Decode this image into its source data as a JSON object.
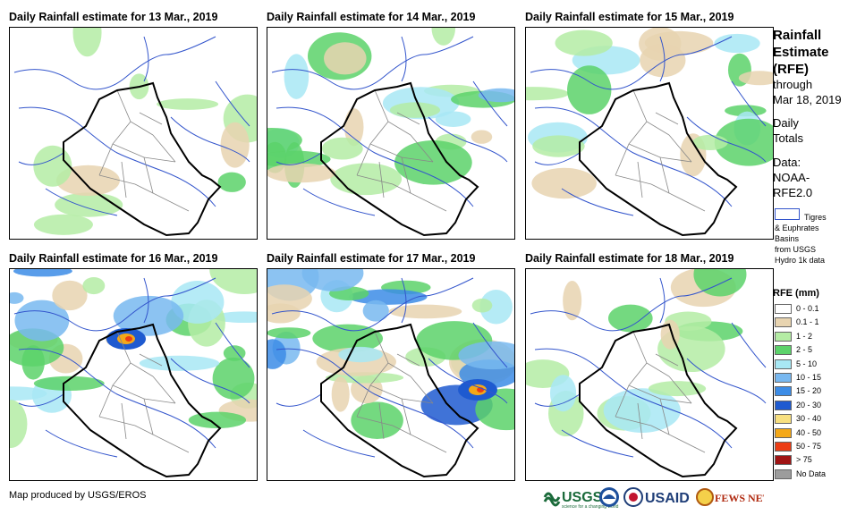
{
  "panels": [
    {
      "title": "Daily Rainfall estimate for 13 Mar., 2019",
      "intensity": 0
    },
    {
      "title": "Daily Rainfall estimate for 14 Mar., 2019",
      "intensity": 2
    },
    {
      "title": "Daily Rainfall estimate for 15 Mar., 2019",
      "intensity": 1
    },
    {
      "title": "Daily Rainfall estimate for 16 Mar., 2019",
      "intensity": 3
    },
    {
      "title": "Daily Rainfall estimate for 17 Mar., 2019",
      "intensity": 4
    },
    {
      "title": "Daily Rainfall estimate for 18 Mar., 2019",
      "intensity": 1
    }
  ],
  "legend": {
    "title": "Rainfall Estimate (RFE)",
    "through": "through",
    "date": "Mar 18, 2019",
    "daily": "Daily",
    "totals": "Totals",
    "data_label": "Data:",
    "data_source1": "NOAA-",
    "data_source2": "RFE2.0",
    "basin_line1": "Tigres",
    "basin_line2": "& Euphrates",
    "basin_line3": "Basins",
    "basin_line4": "from USGS",
    "basin_line5": "Hydro 1k data",
    "rfe_title": "RFE (mm)",
    "classes": [
      {
        "label": "0 - 0.1",
        "color": "#ffffff"
      },
      {
        "label": "0.1 - 1",
        "color": "#e8d4b0"
      },
      {
        "label": "1 - 2",
        "color": "#b4eca4"
      },
      {
        "label": "2 - 5",
        "color": "#5cd26a"
      },
      {
        "label": "5 - 10",
        "color": "#a8e8f4"
      },
      {
        "label": "10 - 15",
        "color": "#78b8f0"
      },
      {
        "label": "15 - 20",
        "color": "#3c8ce6"
      },
      {
        "label": "20 - 30",
        "color": "#1e5ad0"
      },
      {
        "label": "30 - 40",
        "color": "#f8e080"
      },
      {
        "label": "40 - 50",
        "color": "#f4a818"
      },
      {
        "label": "50 - 75",
        "color": "#ec3c14"
      },
      {
        "label": "> 75",
        "color": "#a01414"
      },
      {
        "label": "No Data",
        "color": "#9c9c9c"
      }
    ]
  },
  "footer": {
    "credit": "Map produced by USGS/EROS",
    "usgs": "USGS",
    "usgs_tag": "science for a changing world",
    "usaid": "USAID",
    "fewsnet": "FEWS NET"
  }
}
